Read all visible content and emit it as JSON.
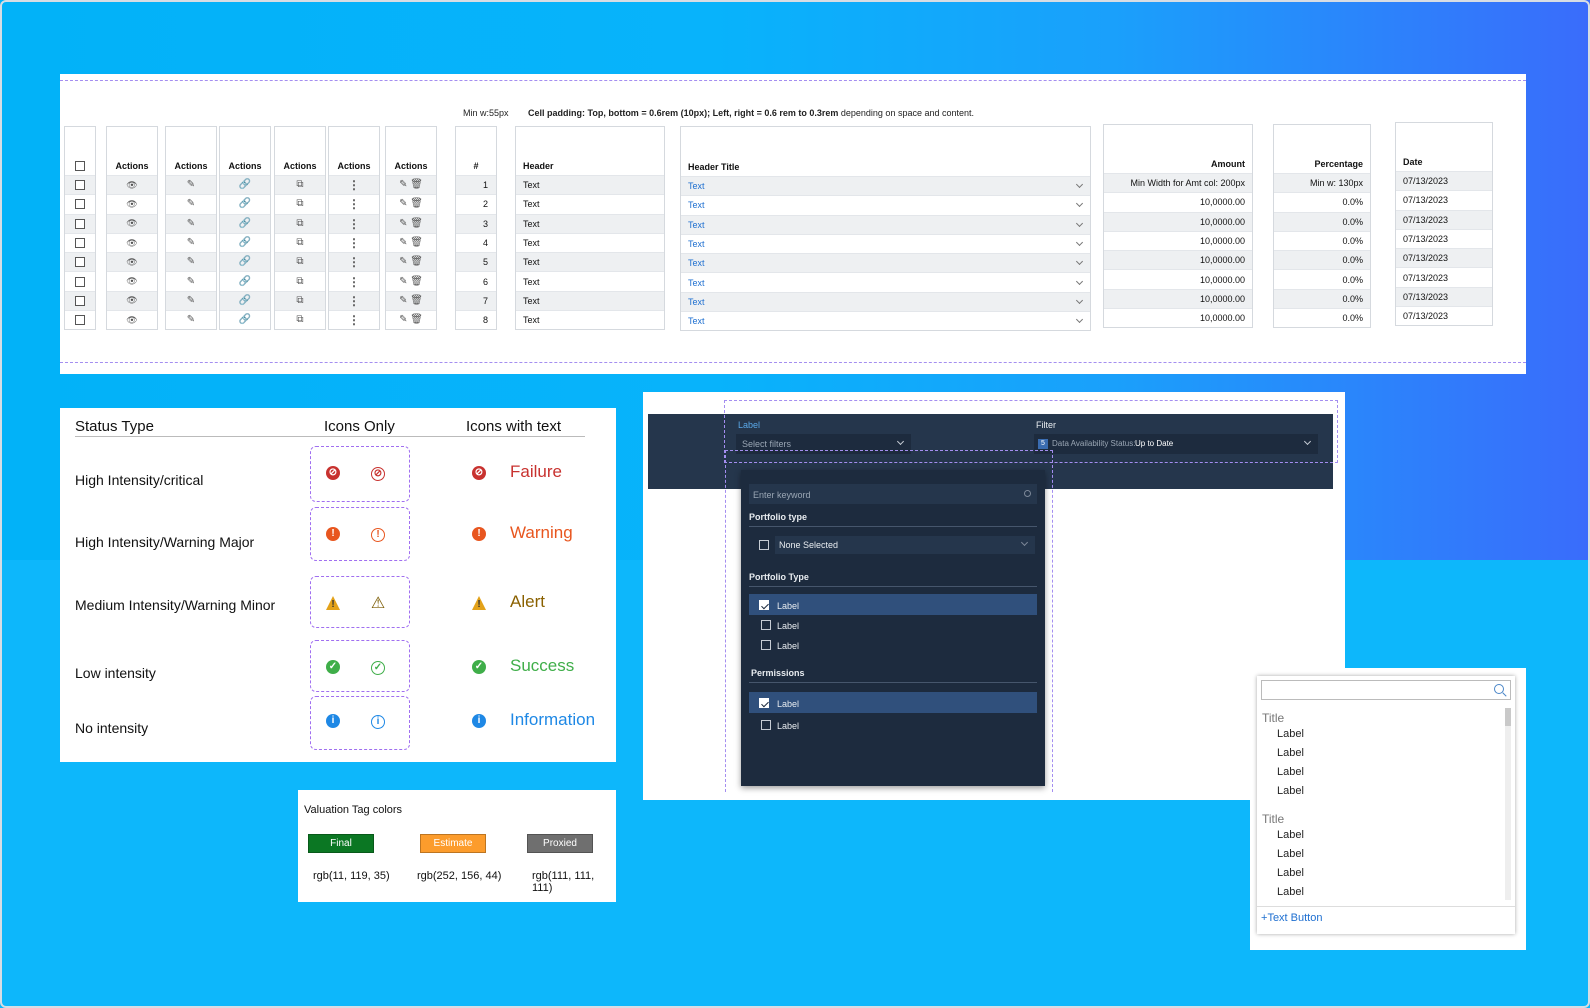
{
  "table": {
    "spec_minw": "Min w:55px",
    "spec_padding_bold": "Cell padding: Top, bottom = 0.6rem (10px); Left, right = 0.6 rem to 0.3rem",
    "spec_padding_rest": " depending on space and content.",
    "actions_header": "Actions",
    "number_header": "#",
    "header_col": "Header",
    "header_title_col": "Header Title",
    "amount_col": "Amount",
    "percentage_col": "Percentage",
    "date_col": "Date",
    "rows": [
      {
        "n": "1",
        "text": "Text",
        "link": "Text",
        "amount": "Min Width for Amt col: 200px",
        "pct": "Min w: 130px",
        "date": "07/13/2023"
      },
      {
        "n": "2",
        "text": "Text",
        "link": "Text",
        "amount": "10,0000.00",
        "pct": "0.0%",
        "date": "07/13/2023"
      },
      {
        "n": "3",
        "text": "Text",
        "link": "Text",
        "amount": "10,0000.00",
        "pct": "0.0%",
        "date": "07/13/2023"
      },
      {
        "n": "4",
        "text": "Text",
        "link": "Text",
        "amount": "10,0000.00",
        "pct": "0.0%",
        "date": "07/13/2023"
      },
      {
        "n": "5",
        "text": "Text",
        "link": "Text",
        "amount": "10,0000.00",
        "pct": "0.0%",
        "date": "07/13/2023"
      },
      {
        "n": "6",
        "text": "Text",
        "link": "Text",
        "amount": "10,0000.00",
        "pct": "0.0%",
        "date": "07/13/2023"
      },
      {
        "n": "7",
        "text": "Text",
        "link": "Text",
        "amount": "10,0000.00",
        "pct": "0.0%",
        "date": "07/13/2023"
      },
      {
        "n": "8",
        "text": "Text",
        "link": "Text",
        "amount": "10,0000.00",
        "pct": "0.0%",
        "date": "07/13/2023"
      }
    ],
    "action_icons": [
      "eye-icon",
      "pencil-icon",
      "paperclip-icon",
      "external-link-icon",
      "kebab-menu-icon",
      "pencil-trash-icons"
    ]
  },
  "status": {
    "col_type": "Status Type",
    "col_icons": "Icons Only",
    "col_icons_text": "Icons with text",
    "rows": [
      {
        "label": "High Intensity/critical",
        "text": "Failure",
        "color": "#c8322f",
        "glyph": "⊘"
      },
      {
        "label": "High Intensity/Warning Major",
        "text": "Warning",
        "color": "#e8561f",
        "glyph": "!"
      },
      {
        "label": "Medium Intensity/Warning Minor",
        "text": "Alert",
        "color": "#e3a21a",
        "text_color": "#8a6100",
        "glyph": "!"
      },
      {
        "label": "Low intensity",
        "text": "Success",
        "color": "#3fae49",
        "glyph": "✓"
      },
      {
        "label": "No intensity",
        "text": "Information",
        "color": "#1e88e5",
        "glyph": "i"
      }
    ]
  },
  "tags": {
    "title": "Valuation Tag colors",
    "items": [
      {
        "label": "Final",
        "rgb": "rgb(11, 119, 35)",
        "color": "#0b7723"
      },
      {
        "label": "Estimate",
        "rgb": "rgb(252, 156, 44)",
        "color": "#fc9c2c"
      },
      {
        "label": "Proxied",
        "rgb": "rgb(111, 111, 111)",
        "color": "#6f6f6f"
      }
    ]
  },
  "filter": {
    "label": "Label",
    "select_placeholder": "Select filters",
    "filter_label": "Filter",
    "filter_count": "5",
    "filter_status_key": "Data Availability Status:",
    "filter_status_value": "Up to Date",
    "keyword_placeholder": "Enter keyword",
    "section1": "Portfolio type",
    "none_selected": "None Selected",
    "section2": "Portfolio Type",
    "section2_items": [
      "Label",
      "Label",
      "Label"
    ],
    "section3": "Permissions",
    "section3_items": [
      "Label",
      "Label"
    ]
  },
  "list": {
    "group1_title": "Title",
    "group1_items": [
      "Label",
      "Label",
      "Label",
      "Label"
    ],
    "group2_title": "Title",
    "group2_items": [
      "Label",
      "Label",
      "Label",
      "Label"
    ],
    "text_button": "Text Button"
  }
}
